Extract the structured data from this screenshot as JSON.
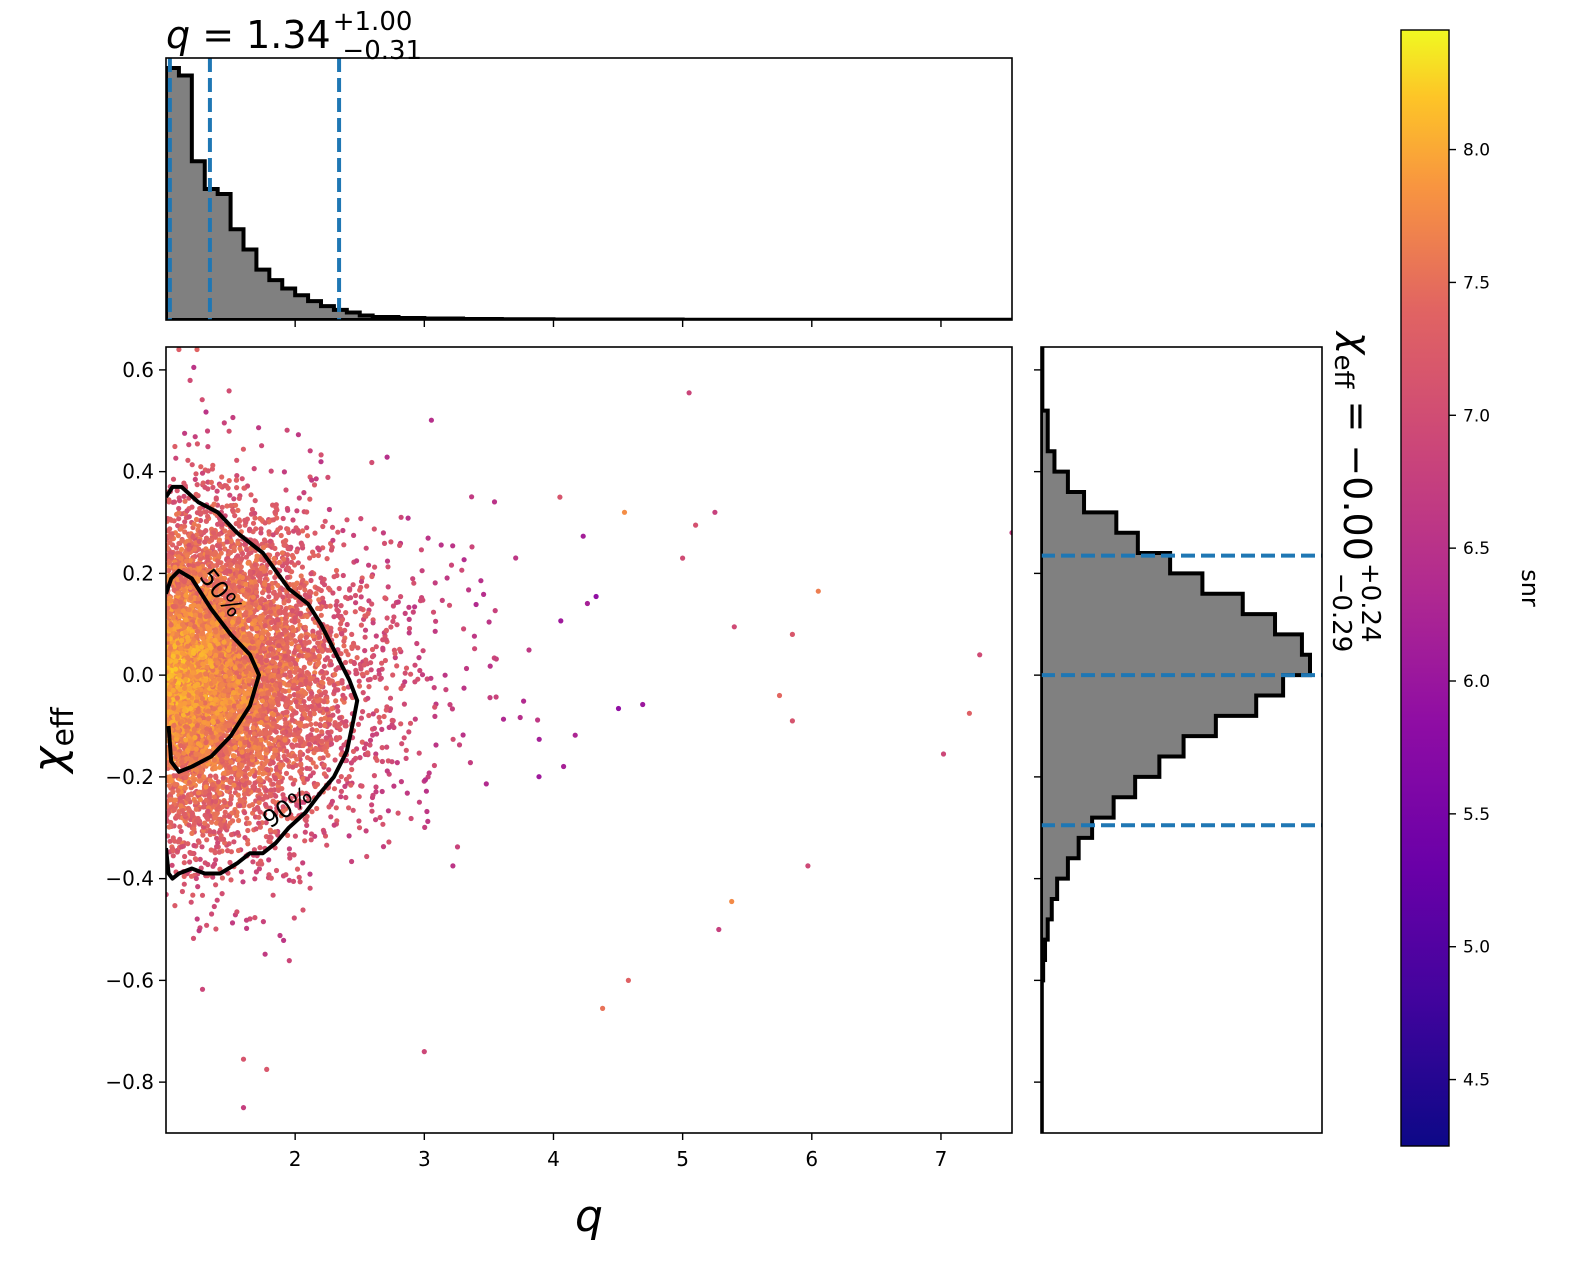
{
  "chart_data": {
    "type": "scatter",
    "main": {
      "xlabel": "q",
      "ylabel": "χ_eff",
      "xlim": [
        1.0,
        7.55
      ],
      "ylim": [
        -0.9,
        0.645
      ],
      "xticks": [
        2,
        3,
        4,
        5,
        6,
        7
      ],
      "yticks": [
        0.6,
        0.4,
        0.2,
        0.0,
        -0.2,
        -0.4,
        -0.6,
        -0.8
      ],
      "ytick_labels": [
        "0.6",
        "0.4",
        "0.2",
        "0.0",
        "−0.2",
        "−0.4",
        "−0.6",
        "−0.8"
      ],
      "color_by": "snr",
      "contours": [
        {
          "label": "50%",
          "points": [
            [
              1.0,
              0.16
            ],
            [
              1.04,
              0.19
            ],
            [
              1.1,
              0.205
            ],
            [
              1.2,
              0.19
            ],
            [
              1.35,
              0.13
            ],
            [
              1.5,
              0.08
            ],
            [
              1.65,
              0.04
            ],
            [
              1.72,
              0.0
            ],
            [
              1.65,
              -0.06
            ],
            [
              1.5,
              -0.12
            ],
            [
              1.35,
              -0.16
            ],
            [
              1.2,
              -0.18
            ],
            [
              1.1,
              -0.19
            ],
            [
              1.04,
              -0.17
            ],
            [
              1.02,
              -0.1
            ]
          ]
        },
        {
          "label": "90%",
          "points": [
            [
              1.0,
              0.35
            ],
            [
              1.05,
              0.37
            ],
            [
              1.12,
              0.37
            ],
            [
              1.25,
              0.34
            ],
            [
              1.4,
              0.32
            ],
            [
              1.55,
              0.28
            ],
            [
              1.75,
              0.24
            ],
            [
              1.95,
              0.17
            ],
            [
              2.1,
              0.14
            ],
            [
              2.2,
              0.1
            ],
            [
              2.3,
              0.05
            ],
            [
              2.42,
              -0.01
            ],
            [
              2.48,
              -0.05
            ],
            [
              2.45,
              -0.09
            ],
            [
              2.4,
              -0.15
            ],
            [
              2.3,
              -0.2
            ],
            [
              2.2,
              -0.23
            ],
            [
              2.08,
              -0.27
            ],
            [
              1.95,
              -0.3
            ],
            [
              1.85,
              -0.33
            ],
            [
              1.75,
              -0.35
            ],
            [
              1.65,
              -0.35
            ],
            [
              1.55,
              -0.37
            ],
            [
              1.42,
              -0.39
            ],
            [
              1.3,
              -0.39
            ],
            [
              1.2,
              -0.38
            ],
            [
              1.1,
              -0.39
            ],
            [
              1.05,
              -0.4
            ],
            [
              1.02,
              -0.39
            ],
            [
              1.0,
              -0.34
            ]
          ]
        }
      ],
      "outliers": [
        [
          1.1,
          0.64
        ],
        [
          1.24,
          0.64
        ],
        [
          5.05,
          0.555
        ],
        [
          4.05,
          0.35
        ],
        [
          4.55,
          0.32
        ],
        [
          5.25,
          0.32
        ],
        [
          5.1,
          0.295
        ],
        [
          5.0,
          0.23
        ],
        [
          6.05,
          0.165
        ],
        [
          5.4,
          0.095
        ],
        [
          5.85,
          0.08
        ],
        [
          7.3,
          0.04
        ],
        [
          7.22,
          -0.075
        ],
        [
          7.02,
          -0.155
        ],
        [
          7.55,
          0.28
        ],
        [
          5.75,
          -0.04
        ],
        [
          5.85,
          -0.09
        ],
        [
          5.38,
          -0.445
        ],
        [
          5.28,
          -0.5
        ],
        [
          5.97,
          -0.375
        ],
        [
          4.38,
          -0.655
        ],
        [
          4.58,
          -0.6
        ],
        [
          3.0,
          -0.74
        ],
        [
          1.6,
          -0.85
        ],
        [
          1.78,
          -0.775
        ],
        [
          1.6,
          -0.755
        ]
      ]
    },
    "top_hist": {
      "title_value": "1.34",
      "title_plus": "+1.00",
      "title_minus": "−0.31",
      "quantile_lines": [
        1.03,
        1.34,
        2.34
      ],
      "bins_q": [
        1.0,
        1.1,
        1.2,
        1.3,
        1.4,
        1.5,
        1.6,
        1.7,
        1.8,
        1.9,
        2.0,
        2.1,
        2.2,
        2.3,
        2.4,
        2.5,
        2.6,
        2.8,
        3.0,
        3.3,
        3.6,
        4.0,
        5.0,
        6.0,
        7.55
      ],
      "counts": [
        1.0,
        0.97,
        0.63,
        0.52,
        0.5,
        0.36,
        0.28,
        0.2,
        0.158,
        0.125,
        0.098,
        0.075,
        0.055,
        0.04,
        0.03,
        0.018,
        0.012,
        0.008,
        0.006,
        0.004,
        0.003,
        0.002,
        0.001,
        0.001
      ]
    },
    "right_hist": {
      "title_value": "−0.00",
      "title_plus": "+0.24",
      "title_minus": "−0.29",
      "quantile_lines": [
        0.235,
        0.0,
        -0.295
      ],
      "bins_chi": [
        0.645,
        0.52,
        0.44,
        0.4,
        0.36,
        0.32,
        0.28,
        0.24,
        0.2,
        0.16,
        0.12,
        0.08,
        0.04,
        0.0,
        -0.04,
        -0.08,
        -0.12,
        -0.16,
        -0.2,
        -0.24,
        -0.28,
        -0.32,
        -0.36,
        -0.4,
        -0.44,
        -0.48,
        -0.52,
        -0.56,
        -0.6,
        -0.9
      ],
      "counts": [
        0.005,
        0.025,
        0.05,
        0.1,
        0.16,
        0.28,
        0.36,
        0.48,
        0.6,
        0.75,
        0.87,
        0.97,
        1.0,
        0.9,
        0.8,
        0.65,
        0.53,
        0.44,
        0.35,
        0.27,
        0.19,
        0.14,
        0.1,
        0.06,
        0.04,
        0.025,
        0.015,
        0.008,
        0.003
      ]
    },
    "colorbar": {
      "label": "snr",
      "range": [
        4.25,
        8.45
      ],
      "ticks": [
        "4.5",
        "5.0",
        "5.5",
        "6.0",
        "6.5",
        "7.0",
        "7.5",
        "8.0"
      ]
    }
  }
}
